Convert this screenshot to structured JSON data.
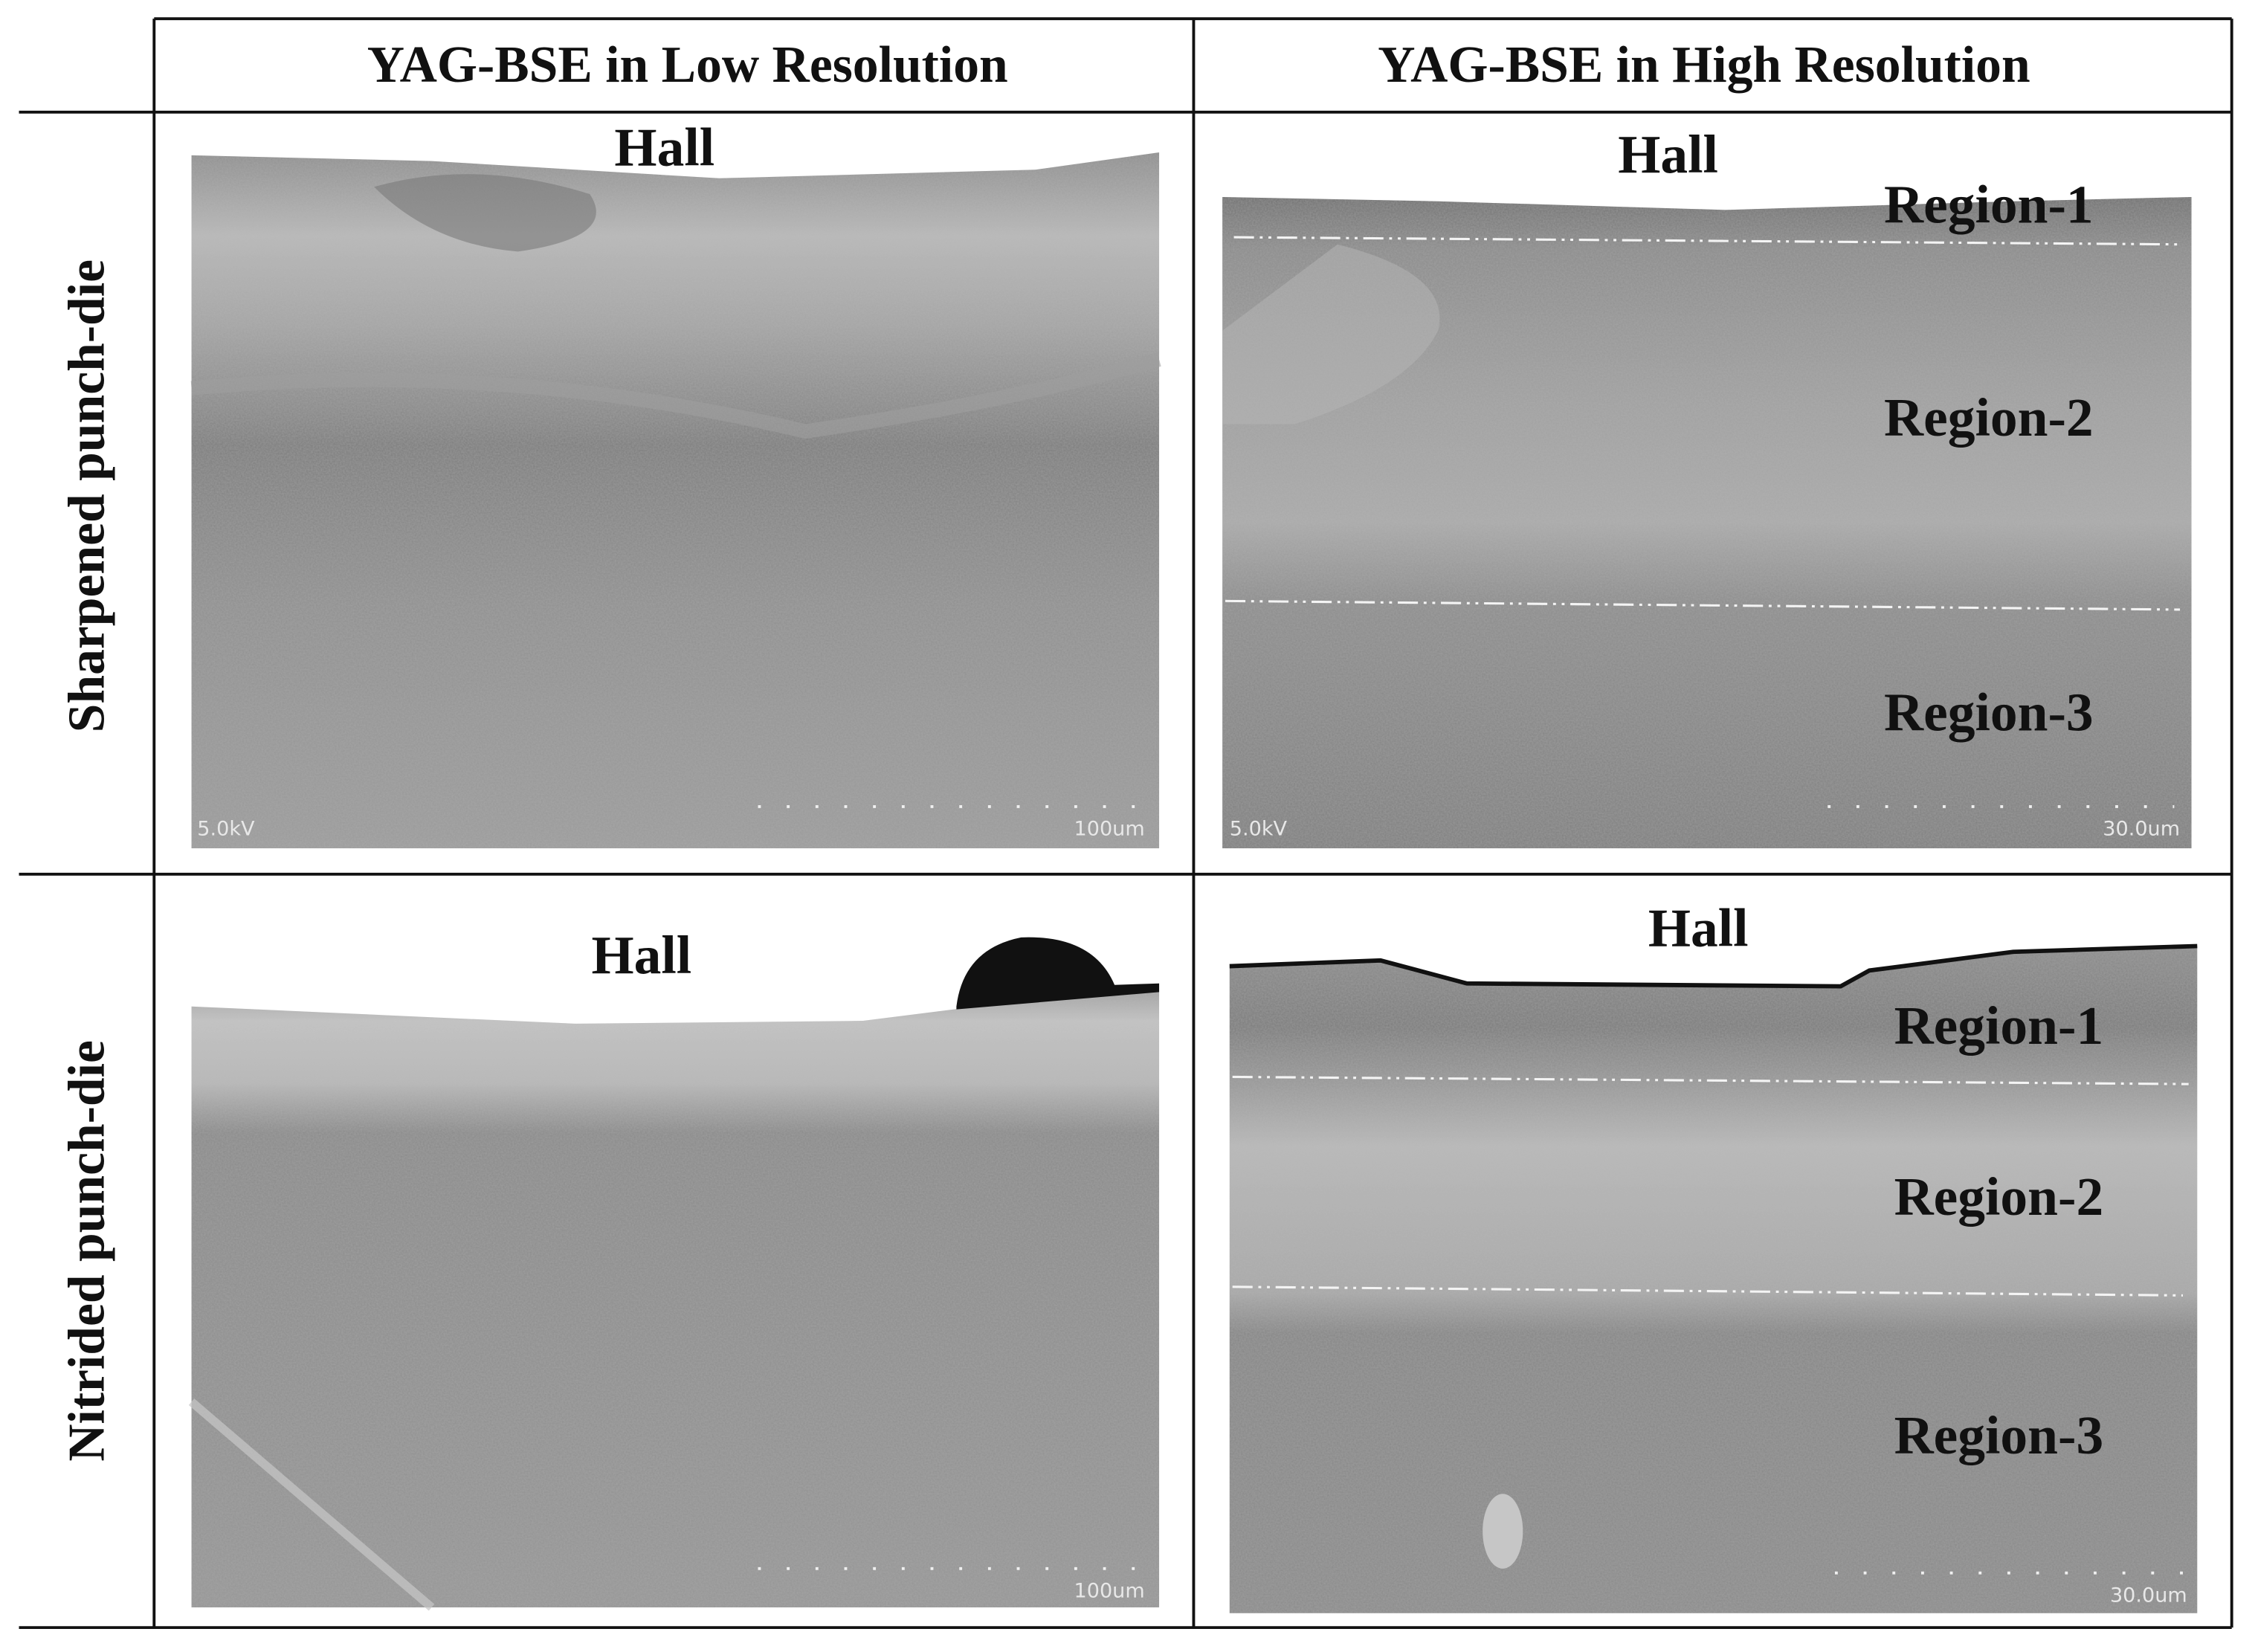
{
  "table": {
    "columns": [
      "YAG-BSE in Low Resolution",
      "YAG-BSE in High Resolution"
    ],
    "rows": [
      {
        "label": "Sharpened punch-die",
        "cells": [
          {
            "annotations": [
              "Hall"
            ],
            "voltage": "5.0kV",
            "scale": "100um"
          },
          {
            "annotations": [
              "Hall",
              "Region-1",
              "Region-2",
              "Region-3"
            ],
            "voltage": "5.0kV",
            "scale": "30.0um"
          }
        ]
      },
      {
        "label": "Nitrided punch-die",
        "cells": [
          {
            "annotations": [
              "Hall"
            ],
            "scale": "100um"
          },
          {
            "annotations": [
              "Hall",
              "Region-1",
              "Region-2",
              "Region-3"
            ],
            "scale": "30.0um"
          }
        ]
      }
    ]
  }
}
